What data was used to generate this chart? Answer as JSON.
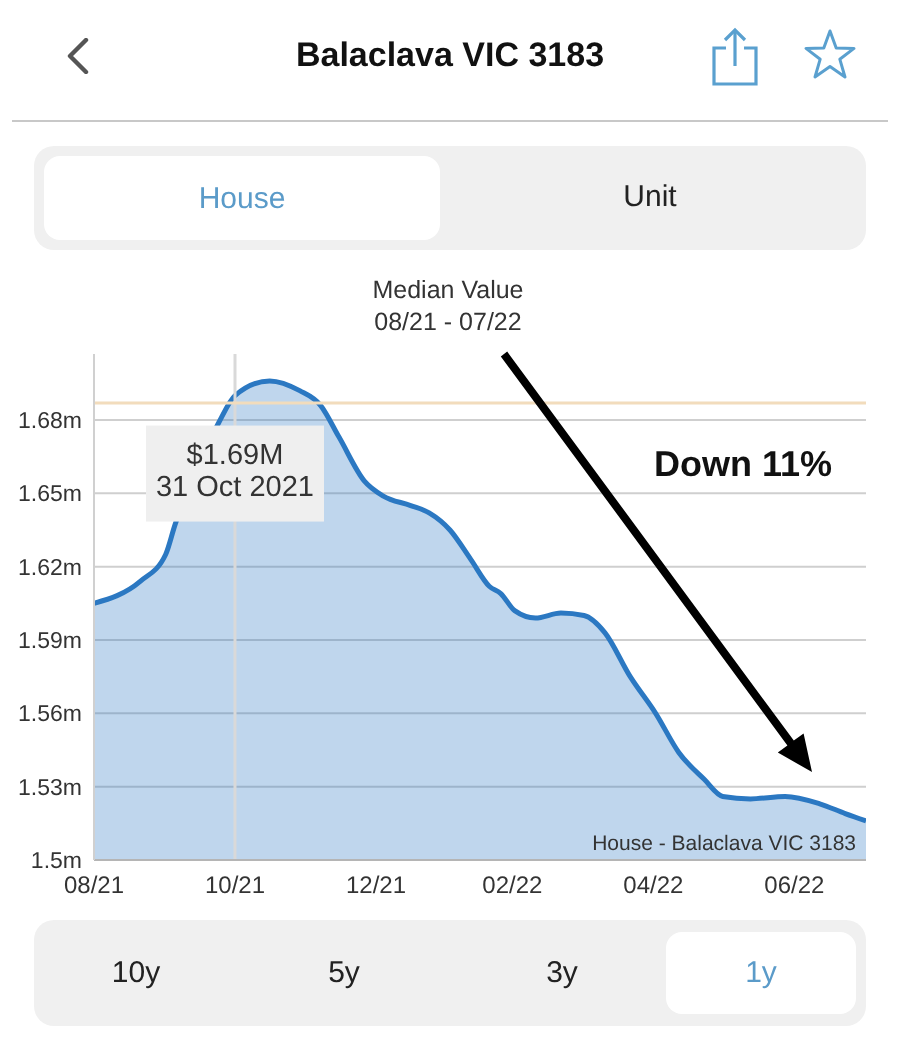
{
  "chart_data": {
    "type": "area",
    "title": "Balaclava VIC 3183",
    "subtitle": "Median Value\n08/21 - 07/22",
    "annotations": [
      "House",
      "Unit",
      {
        "text": "$1.69M\n31 Oct 2021",
        "x": "2021-10-31",
        "y": 1.69
      },
      "Down 11%",
      "House - Balaclava VIC 3183",
      "10y",
      "5y",
      "3y",
      "1y"
    ],
    "x": [
      "2021-08-31",
      "2021-09-20",
      "2021-10-01",
      "2021-10-05",
      "2021-10-24",
      "2021-10-31",
      "2021-11-15",
      "2021-11-28",
      "2021-12-07",
      "2021-12-15",
      "2021-12-26",
      "2022-01-03",
      "2022-01-15",
      "2022-01-23",
      "2022-02-01",
      "2022-02-10",
      "2022-02-18",
      "2022-02-23",
      "2022-03-01",
      "2022-03-10",
      "2022-03-21",
      "2022-03-31",
      "2022-04-09",
      "2022-04-20",
      "2022-05-01",
      "2022-05-11",
      "2022-05-22",
      "2022-05-30",
      "2022-06-11",
      "2022-06-26",
      "2022-07-11",
      "2022-07-22",
      "2022-07-31"
    ],
    "series": [
      {
        "color": "#2b78c2",
        "values": [
          1.605,
          1.614,
          1.625,
          1.637,
          1.679,
          1.69,
          1.696,
          1.692,
          1.686,
          1.673,
          1.655,
          1.649,
          1.645,
          1.642,
          1.635,
          1.623,
          1.612,
          1.609,
          1.602,
          1.599,
          1.601,
          1.6,
          1.593,
          1.575,
          1.56,
          1.544,
          1.533,
          1.526,
          1.525,
          1.526,
          1.523,
          1.519,
          1.516
        ]
      }
    ],
    "xlim": [
      "2021-08-31",
      "2022-07-31"
    ],
    "xticks": [
      {
        "value": "2021-08-31",
        "label": "08/21"
      },
      {
        "value": "2021-10-31",
        "label": "10/21"
      },
      {
        "value": "2021-12-31",
        "label": "12/21"
      },
      {
        "value": "2022-02-28",
        "label": "02/22"
      },
      {
        "value": "2022-04-30",
        "label": "04/22"
      },
      {
        "value": "2022-06-30",
        "label": "06/22"
      }
    ],
    "ylim": [
      1.5,
      1.707
    ],
    "yticks": [
      {
        "value": 1.5,
        "label": "1.5m"
      },
      {
        "value": 1.53,
        "label": "1.53m"
      },
      {
        "value": 1.56,
        "label": "1.56m"
      },
      {
        "value": 1.59,
        "label": "1.59m"
      },
      {
        "value": 1.62,
        "label": "1.62m"
      },
      {
        "value": 1.65,
        "label": "1.65m"
      },
      {
        "value": 1.68,
        "label": "1.68m"
      }
    ],
    "grid": "y",
    "ref_lines": [
      {
        "axis": "x",
        "value": "2021-10-31",
        "color": "#d9d9d9"
      },
      {
        "axis": "y",
        "value": 1.687,
        "color": "#f2dcbc"
      }
    ]
  }
}
